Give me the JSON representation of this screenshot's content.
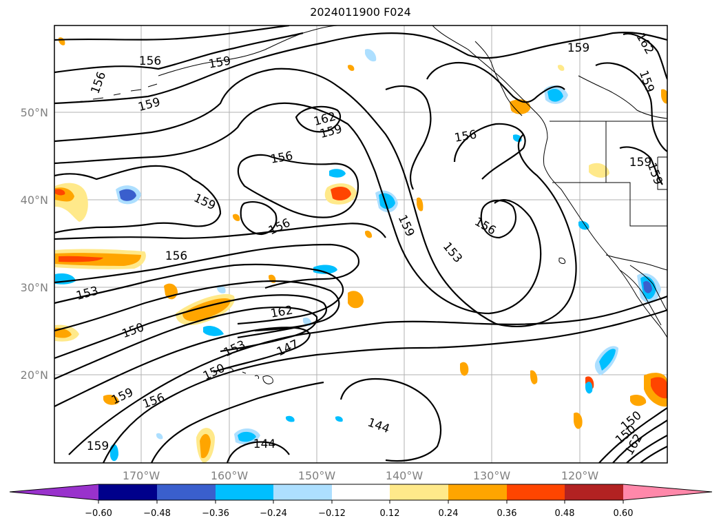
{
  "title": "2024011900 F024",
  "lat_labels": [
    "50°N",
    "40°N",
    "30°N",
    "20°N"
  ],
  "lon_labels": [
    "170°W",
    "160°W",
    "150°W",
    "140°W",
    "130°W",
    "120°W"
  ],
  "colorbar": {
    "ticks": [
      "−0.60",
      "−0.48",
      "−0.36",
      "−0.24",
      "−0.12",
      "0.12",
      "0.24",
      "0.36",
      "0.48",
      "0.60"
    ],
    "colors": [
      "#9932CC",
      "#00008B",
      "#3A5FCD",
      "#00BFFF",
      "#ADDFFF",
      "#FFFFFF",
      "#FFE98A",
      "#FFA500",
      "#FF4500",
      "#B22222",
      "#FF88AA"
    ]
  },
  "contour_labels": [
    {
      "text": "156"
    },
    {
      "text": "156"
    },
    {
      "text": "159"
    },
    {
      "text": "156"
    },
    {
      "text": "159"
    },
    {
      "text": "162"
    },
    {
      "text": "159"
    },
    {
      "text": "156"
    },
    {
      "text": "159"
    },
    {
      "text": "162"
    },
    {
      "text": "159"
    },
    {
      "text": "159"
    },
    {
      "text": "159"
    },
    {
      "text": "156"
    },
    {
      "text": "159"
    },
    {
      "text": "159"
    },
    {
      "text": "156"
    },
    {
      "text": "153"
    },
    {
      "text": "156"
    },
    {
      "text": "153"
    },
    {
      "text": "162"
    },
    {
      "text": "150"
    },
    {
      "text": "153"
    },
    {
      "text": "147"
    },
    {
      "text": "150"
    },
    {
      "text": "159"
    },
    {
      "text": "156"
    },
    {
      "text": "144"
    },
    {
      "text": "159"
    },
    {
      "text": "144"
    },
    {
      "text": "150"
    },
    {
      "text": "150"
    },
    {
      "text": "162"
    }
  ]
}
